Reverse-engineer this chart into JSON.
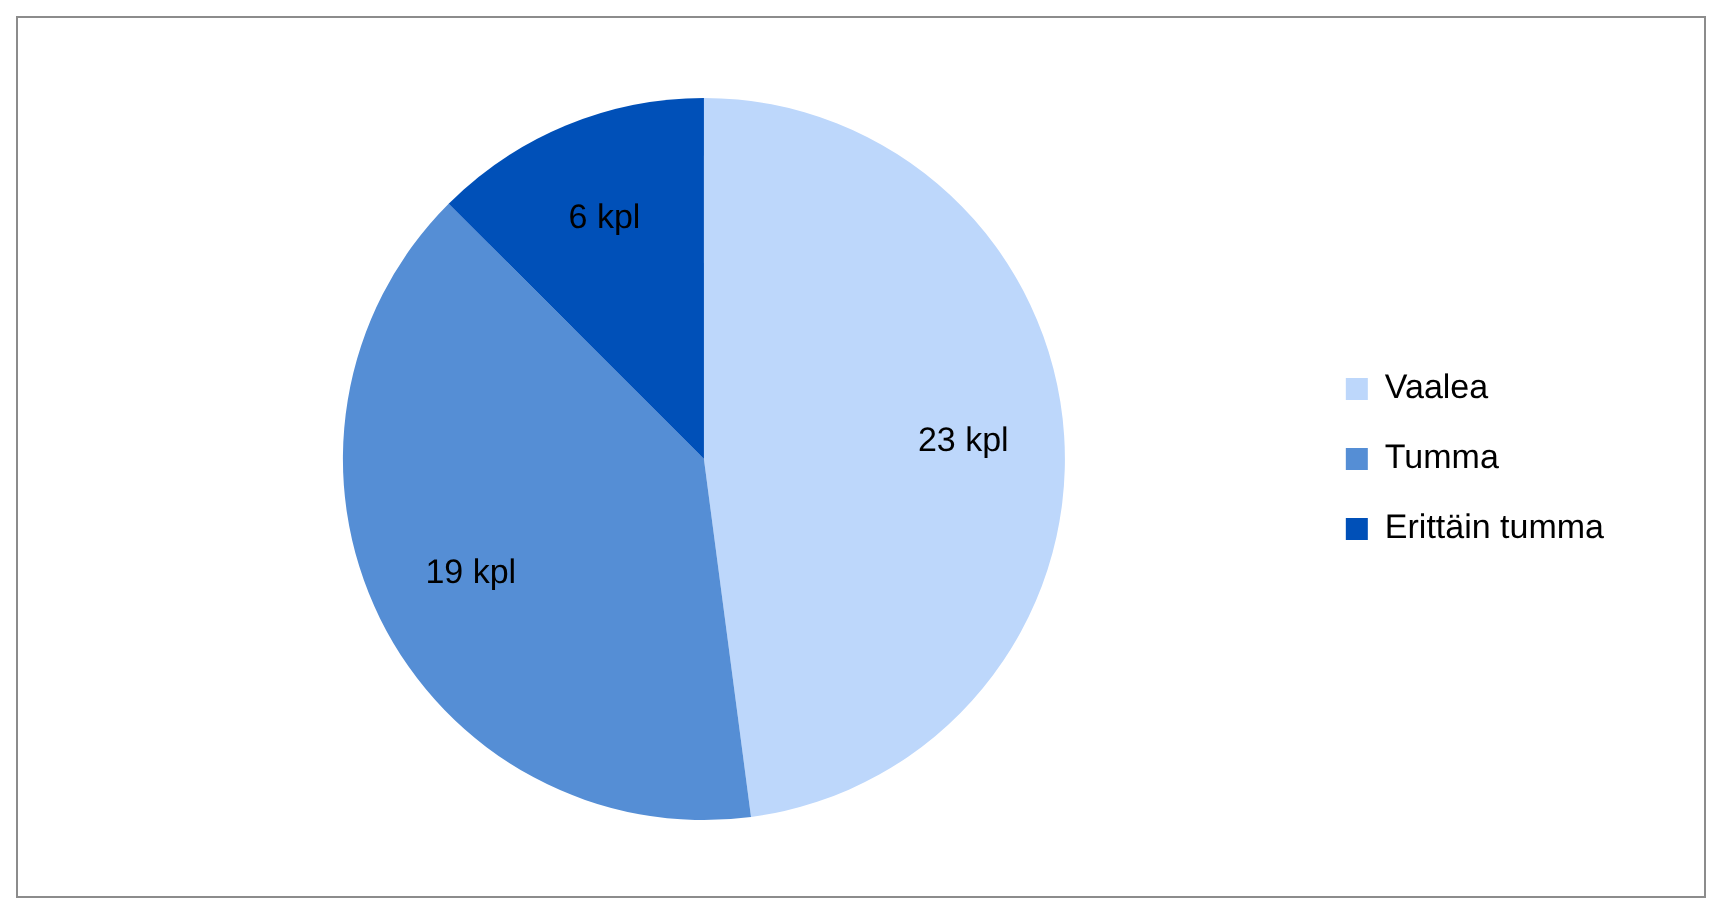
{
  "chart_data": {
    "type": "pie",
    "categories": [
      "Vaalea",
      "Tumma",
      "Erittäin tumma"
    ],
    "values": [
      23,
      19,
      6
    ],
    "value_labels": [
      "23 kpl",
      "19 kpl",
      "6 kpl"
    ],
    "colors": [
      "#bdd7fb",
      "#558ed5",
      "#0050b8"
    ],
    "legend": "right"
  }
}
